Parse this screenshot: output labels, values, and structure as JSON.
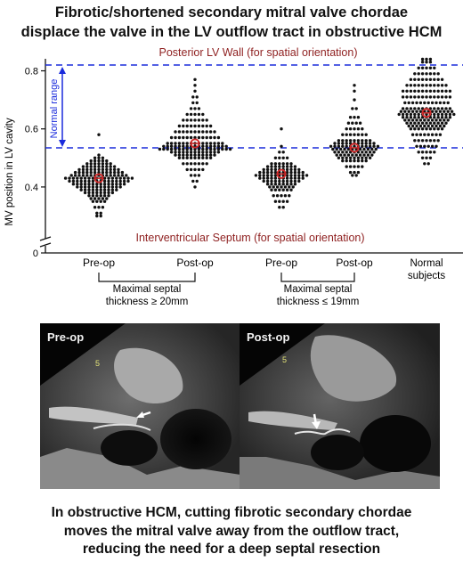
{
  "title": {
    "line1": "Fibrotic/shortened secondary mitral valve chordae",
    "line2": "displace the valve in the LV outflow tract in obstructive HCM"
  },
  "chart_data": {
    "type": "scatter",
    "ylabel": "MV position in LV cavity",
    "ylim": [
      0,
      0.84
    ],
    "y_ticks": [
      "0",
      "0.4",
      "0.6",
      "0.8"
    ],
    "y_axis_break": true,
    "grid": false,
    "categories": [
      "Pre-op",
      "Post-op",
      "Pre-op",
      "Post-op",
      "Normal subjects"
    ],
    "groups": [
      {
        "label_line1": "Maximal septal",
        "label_line2": "thickness ≥ 20mm",
        "category_indices": [
          0,
          1
        ]
      },
      {
        "label_line1": "Maximal septal",
        "label_line2": "thickness ≤ 19mm",
        "category_indices": [
          2,
          3
        ]
      }
    ],
    "series": [
      {
        "category": "Pre-op",
        "mean": 0.43,
        "y_range": [
          0.3,
          0.58
        ],
        "distribution": [
          [
            0.58,
            1
          ],
          [
            0.51,
            1
          ],
          [
            0.5,
            3
          ],
          [
            0.49,
            5
          ],
          [
            0.48,
            7
          ],
          [
            0.47,
            9
          ],
          [
            0.46,
            11
          ],
          [
            0.45,
            13
          ],
          [
            0.44,
            15
          ],
          [
            0.43,
            18
          ],
          [
            0.42,
            16
          ],
          [
            0.41,
            14
          ],
          [
            0.4,
            12
          ],
          [
            0.39,
            10
          ],
          [
            0.38,
            8
          ],
          [
            0.37,
            6
          ],
          [
            0.36,
            5
          ],
          [
            0.35,
            4
          ],
          [
            0.33,
            3
          ],
          [
            0.31,
            2
          ],
          [
            0.3,
            2
          ]
        ]
      },
      {
        "category": "Post-op",
        "mean": 0.55,
        "y_range": [
          0.4,
          0.77
        ],
        "distribution": [
          [
            0.77,
            1
          ],
          [
            0.75,
            1
          ],
          [
            0.73,
            1
          ],
          [
            0.71,
            2
          ],
          [
            0.69,
            2
          ],
          [
            0.67,
            3
          ],
          [
            0.65,
            5
          ],
          [
            0.63,
            7
          ],
          [
            0.61,
            9
          ],
          [
            0.59,
            11
          ],
          [
            0.57,
            13
          ],
          [
            0.55,
            15
          ],
          [
            0.54,
            17
          ],
          [
            0.53,
            19
          ],
          [
            0.52,
            13
          ],
          [
            0.51,
            11
          ],
          [
            0.5,
            9
          ],
          [
            0.48,
            7
          ],
          [
            0.46,
            5
          ],
          [
            0.44,
            3
          ],
          [
            0.42,
            2
          ],
          [
            0.4,
            1
          ]
        ]
      },
      {
        "category": "Pre-op",
        "mean": 0.445,
        "y_range": [
          0.33,
          0.6
        ],
        "distribution": [
          [
            0.6,
            1
          ],
          [
            0.54,
            1
          ],
          [
            0.52,
            2
          ],
          [
            0.5,
            4
          ],
          [
            0.48,
            6
          ],
          [
            0.47,
            8
          ],
          [
            0.46,
            10
          ],
          [
            0.45,
            12
          ],
          [
            0.44,
            14
          ],
          [
            0.43,
            12
          ],
          [
            0.42,
            10
          ],
          [
            0.41,
            8
          ],
          [
            0.4,
            7
          ],
          [
            0.39,
            6
          ],
          [
            0.37,
            5
          ],
          [
            0.35,
            4
          ],
          [
            0.33,
            2
          ]
        ]
      },
      {
        "category": "Post-op",
        "mean": 0.535,
        "y_range": [
          0.44,
          0.75
        ],
        "distribution": [
          [
            0.75,
            1
          ],
          [
            0.73,
            1
          ],
          [
            0.7,
            1
          ],
          [
            0.67,
            2
          ],
          [
            0.64,
            3
          ],
          [
            0.62,
            4
          ],
          [
            0.6,
            5
          ],
          [
            0.58,
            7
          ],
          [
            0.56,
            9
          ],
          [
            0.55,
            11
          ],
          [
            0.54,
            13
          ],
          [
            0.53,
            12
          ],
          [
            0.52,
            11
          ],
          [
            0.51,
            10
          ],
          [
            0.5,
            9
          ],
          [
            0.49,
            7
          ],
          [
            0.47,
            5
          ],
          [
            0.45,
            3
          ],
          [
            0.44,
            2
          ]
        ]
      },
      {
        "category": "Normal subjects",
        "mean": 0.655,
        "y_range": [
          0.48,
          0.84
        ],
        "distribution": [
          [
            0.84,
            3
          ],
          [
            0.83,
            3
          ],
          [
            0.81,
            5
          ],
          [
            0.79,
            7
          ],
          [
            0.77,
            9
          ],
          [
            0.75,
            11
          ],
          [
            0.73,
            13
          ],
          [
            0.71,
            13
          ],
          [
            0.69,
            12
          ],
          [
            0.67,
            13
          ],
          [
            0.66,
            14
          ],
          [
            0.65,
            15
          ],
          [
            0.64,
            13
          ],
          [
            0.63,
            12
          ],
          [
            0.62,
            11
          ],
          [
            0.61,
            10
          ],
          [
            0.6,
            9
          ],
          [
            0.58,
            8
          ],
          [
            0.56,
            7
          ],
          [
            0.54,
            6
          ],
          [
            0.52,
            5
          ],
          [
            0.5,
            3
          ],
          [
            0.48,
            2
          ]
        ]
      }
    ],
    "reference_lines": [
      {
        "y": 0.82,
        "style": "dashed",
        "color": "#1a2bdc"
      },
      {
        "y": 0.535,
        "style": "dashed",
        "color": "#1a2bdc"
      }
    ],
    "annotations": {
      "top": "Posterior LV Wall (for spatial orientation)",
      "bottom": "Interventricular Septum (for spatial orientation)",
      "range": "Normal range"
    },
    "colors": {
      "dots": "#111111",
      "mean_marker": "#d42a2a",
      "reference": "#1a2bdc",
      "annotation": "#8e1f1f"
    }
  },
  "images": {
    "left_label": "Pre-op",
    "right_label": "Post-op",
    "depth_marker": "5"
  },
  "caption": {
    "line1": "In obstructive HCM, cutting fibrotic secondary chordae",
    "line2": "moves the mitral valve away from the outflow tract,",
    "line3": "reducing the need for a deep septal resection"
  }
}
